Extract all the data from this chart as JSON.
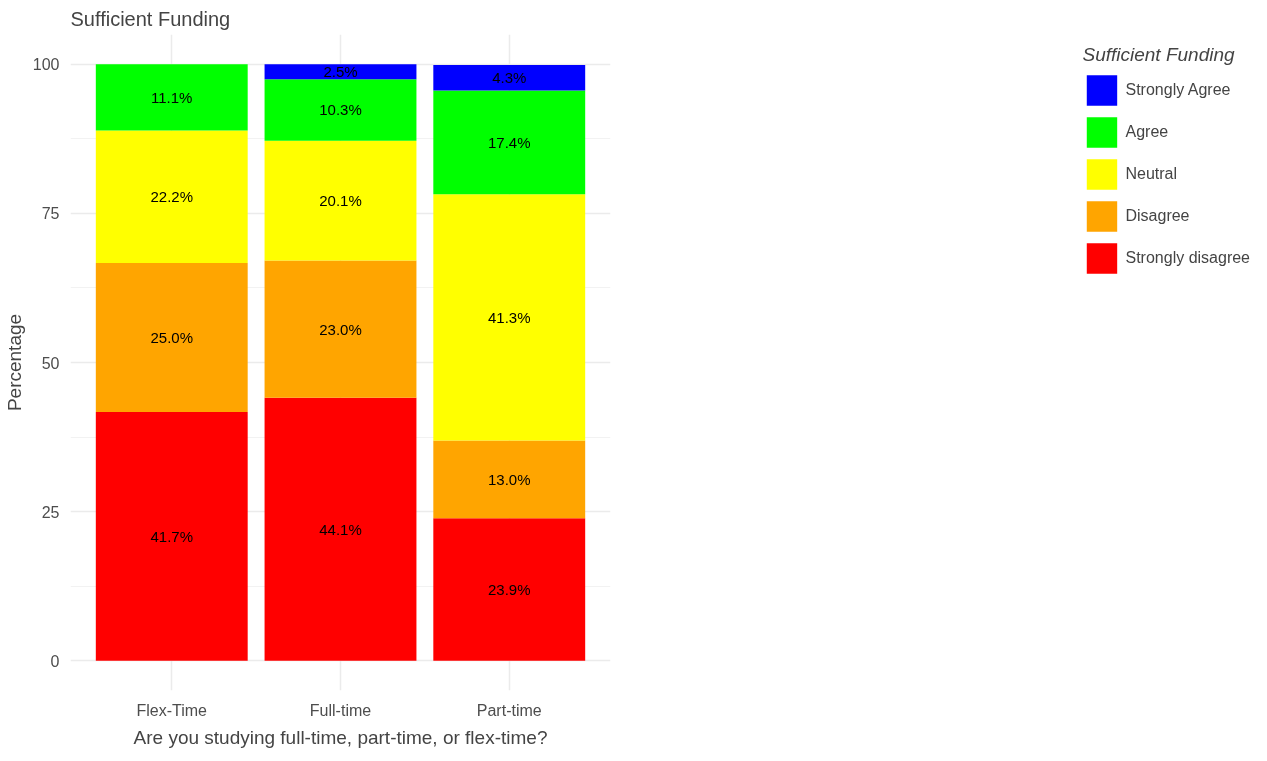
{
  "chart_data": {
    "type": "bar",
    "title": "Sufficient Funding",
    "xlabel": "Are you studying full-time, part-time, or flex-time?",
    "ylabel": "Percentage",
    "legend_title": "Sufficient Funding",
    "categories": [
      "Flex-Time",
      "Full-time",
      "Part-time"
    ],
    "stacked": true,
    "series": [
      {
        "name": "Strongly disagree",
        "color": "#ff0000",
        "values": [
          41.7,
          44.1,
          23.9
        ],
        "value_labels": [
          "41.7%",
          "44.1%",
          "23.9%"
        ]
      },
      {
        "name": "Disagree",
        "color": "#ffa500",
        "values": [
          25.0,
          23.0,
          13.0
        ],
        "value_labels": [
          "25.0%",
          "23.0%",
          "13.0%"
        ]
      },
      {
        "name": "Neutral",
        "color": "#ffff00",
        "values": [
          22.2,
          20.1,
          41.3
        ],
        "value_labels": [
          "22.2%",
          "20.1%",
          "41.3%"
        ]
      },
      {
        "name": "Agree",
        "color": "#00ff00",
        "values": [
          11.1,
          10.3,
          17.4
        ],
        "value_labels": [
          "11.1%",
          "10.3%",
          "17.4%"
        ]
      },
      {
        "name": "Strongly Agree",
        "color": "#0000ff",
        "values": [
          null,
          2.5,
          4.3
        ],
        "value_labels": [
          null,
          "2.5%",
          "4.3%"
        ]
      }
    ],
    "ylim": [
      -5,
      105
    ],
    "yticks": [
      0,
      25,
      50,
      75,
      100
    ],
    "grid": true,
    "legend": "right"
  }
}
